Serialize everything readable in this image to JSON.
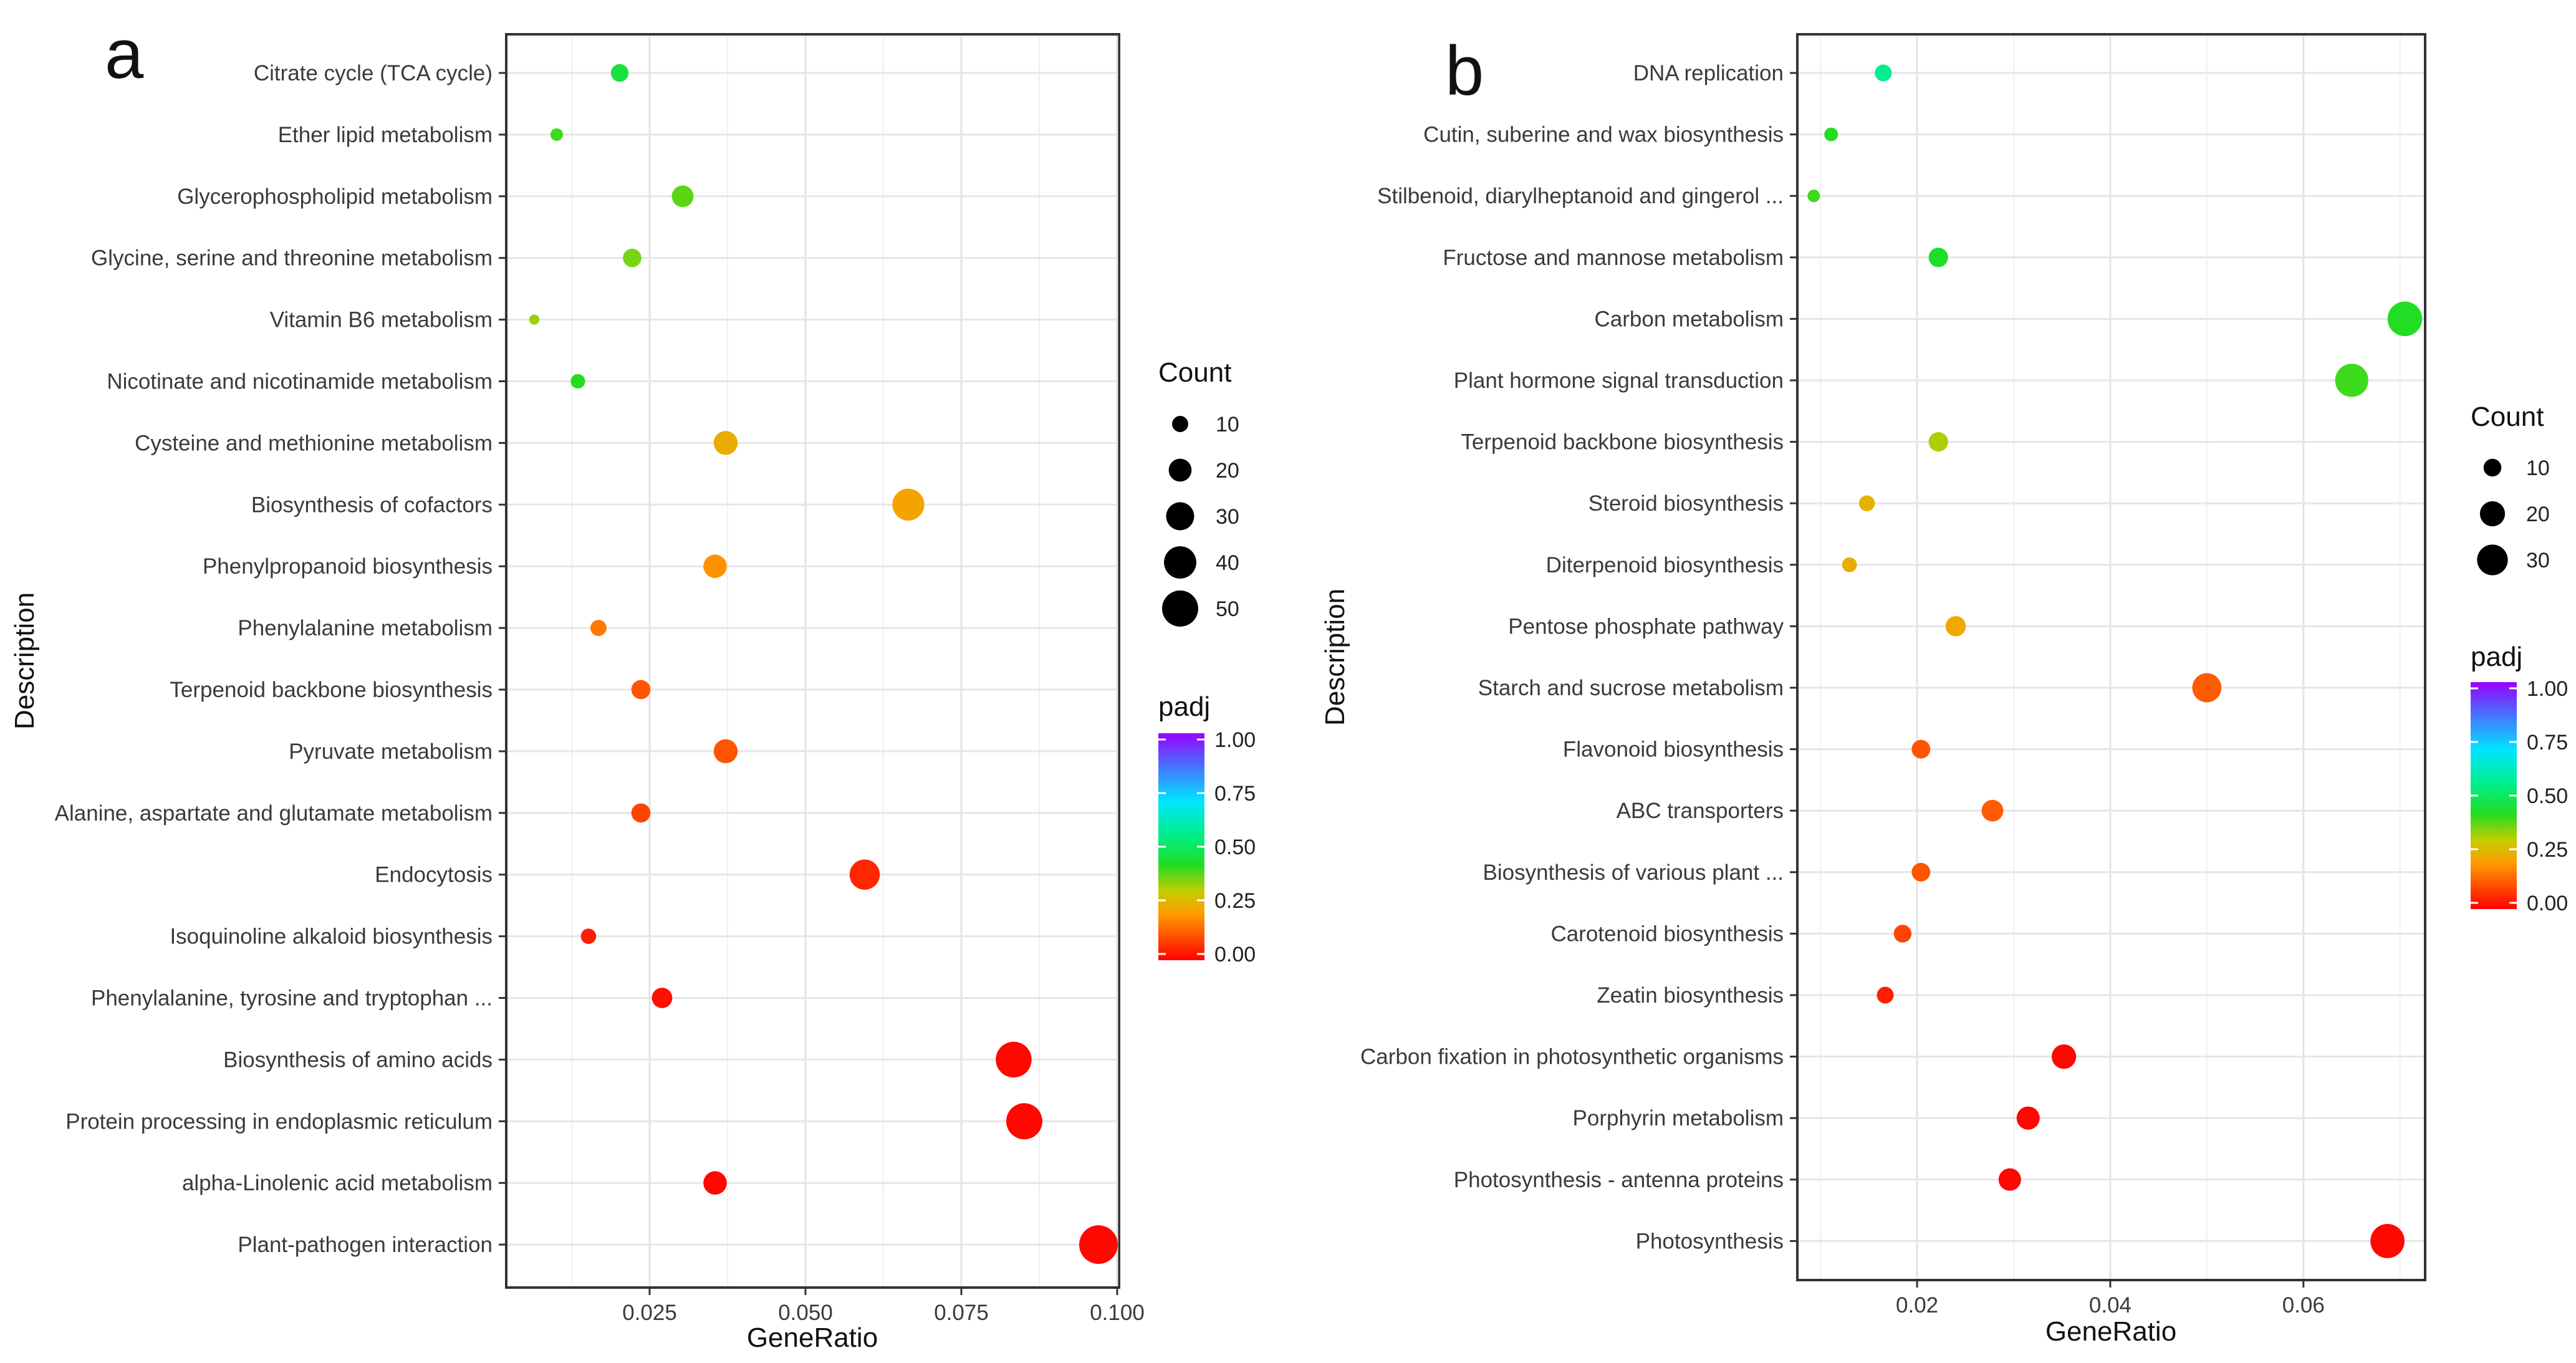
{
  "figure_labels": [
    "a",
    "b"
  ],
  "chart_data": [
    {
      "type": "scatter",
      "panel": "a",
      "title": "",
      "xlabel": "GeneRatio",
      "ylabel": "Description",
      "xlim": [
        0.002,
        0.1003
      ],
      "xticks": [
        0.025,
        0.05,
        0.075,
        0.1
      ],
      "xtick_labels": [
        "0.025",
        "0.050",
        "0.075",
        "0.100"
      ],
      "grid": true,
      "categories": [
        "Citrate cycle (TCA cycle)",
        "Ether lipid metabolism",
        "Glycerophospholipid metabolism",
        "Glycine, serine and threonine metabolism",
        "Vitamin B6 metabolism",
        "Nicotinate and nicotinamide metabolism",
        "Cysteine and methionine metabolism",
        "Biosynthesis of cofactors",
        "Phenylpropanoid biosynthesis",
        "Phenylalanine metabolism",
        "Terpenoid backbone biosynthesis",
        "Pyruvate metabolism",
        "Alanine, aspartate and glutamate metabolism",
        "Endocytosis",
        "Isoquinoline alkaloid biosynthesis",
        "Phenylalanine, tyrosine and tryptophan ...",
        "Biosynthesis of amino acids",
        "Protein processing in endoplasmic reticulum",
        "alpha-Linolenic acid metabolism",
        "Plant-pathogen interaction"
      ],
      "gene_ratio": [
        0.0202,
        0.0101,
        0.0303,
        0.0222,
        0.0065,
        0.0135,
        0.0372,
        0.0665,
        0.0355,
        0.0168,
        0.0236,
        0.0372,
        0.0236,
        0.0595,
        0.0152,
        0.027,
        0.0834,
        0.0851,
        0.0355,
        0.097
      ],
      "count": [
        12,
        6,
        18,
        13,
        4,
        8,
        22,
        39,
        21,
        10,
        14,
        22,
        14,
        35,
        9,
        16,
        49,
        50,
        21,
        57
      ],
      "padj": [
        0.46,
        0.4,
        0.38,
        0.36,
        0.33,
        0.42,
        0.24,
        0.22,
        0.19,
        0.16,
        0.11,
        0.11,
        0.09,
        0.05,
        0.04,
        0.02,
        0.01,
        0.01,
        0.01,
        0.01
      ],
      "size_legend": {
        "title": "Count",
        "values": [
          10,
          20,
          30,
          40,
          50
        ],
        "labels": [
          "10",
          "20",
          "30",
          "40",
          "50"
        ]
      },
      "color_legend": {
        "title": "padj",
        "range": [
          0,
          1
        ],
        "ticks": [
          "1.00",
          "0.75",
          "0.50",
          "0.25",
          "0.00"
        ]
      },
      "legend_position": "right"
    },
    {
      "type": "scatter",
      "panel": "b",
      "title": "",
      "xlabel": "GeneRatio",
      "ylabel": "Description",
      "xlim": [
        0.0076,
        0.0726
      ],
      "xticks": [
        0.02,
        0.04,
        0.06
      ],
      "xtick_labels": [
        "0.02",
        "0.04",
        "0.06"
      ],
      "grid": true,
      "categories": [
        "DNA replication",
        "Cutin, suberine and wax biosynthesis",
        "Stilbenoid, diarylheptanoid and gingerol ...",
        "Fructose and mannose metabolism",
        "Carbon metabolism",
        "Plant hormone signal transduction",
        "Terpenoid backbone biosynthesis",
        "Steroid biosynthesis",
        "Diterpenoid biosynthesis",
        "Pentose phosphate pathway",
        "Starch and sucrose metabolism",
        "Flavonoid biosynthesis",
        "ABC transporters",
        "Biosynthesis of various plant ...",
        "Carotenoid biosynthesis",
        "Zeatin biosynthesis",
        "Carbon fixation in photosynthetic organisms",
        "Porphyrin metabolism",
        "Photosynthesis - antenna proteins",
        "Photosynthesis"
      ],
      "gene_ratio": [
        0.0165,
        0.0111,
        0.0093,
        0.0222,
        0.0705,
        0.065,
        0.0222,
        0.0148,
        0.013,
        0.024,
        0.05,
        0.0204,
        0.0278,
        0.0204,
        0.0185,
        0.0167,
        0.0352,
        0.0315,
        0.0296,
        0.0687
      ],
      "count": [
        9,
        6,
        5,
        12,
        38,
        35,
        12,
        8,
        7,
        13,
        27,
        11,
        15,
        11,
        10,
        9,
        19,
        17,
        16,
        37
      ],
      "padj": [
        0.56,
        0.42,
        0.4,
        0.43,
        0.42,
        0.4,
        0.32,
        0.25,
        0.24,
        0.23,
        0.12,
        0.11,
        0.12,
        0.11,
        0.09,
        0.04,
        0.01,
        0.01,
        0.01,
        0.01
      ],
      "size_legend": {
        "title": "Count",
        "values": [
          10,
          20,
          30
        ],
        "labels": [
          "10",
          "20",
          "30"
        ]
      },
      "color_legend": {
        "title": "padj",
        "range": [
          0,
          1
        ],
        "ticks": [
          "1.00",
          "0.75",
          "0.50",
          "0.25",
          "0.00"
        ]
      },
      "legend_position": "right"
    }
  ]
}
